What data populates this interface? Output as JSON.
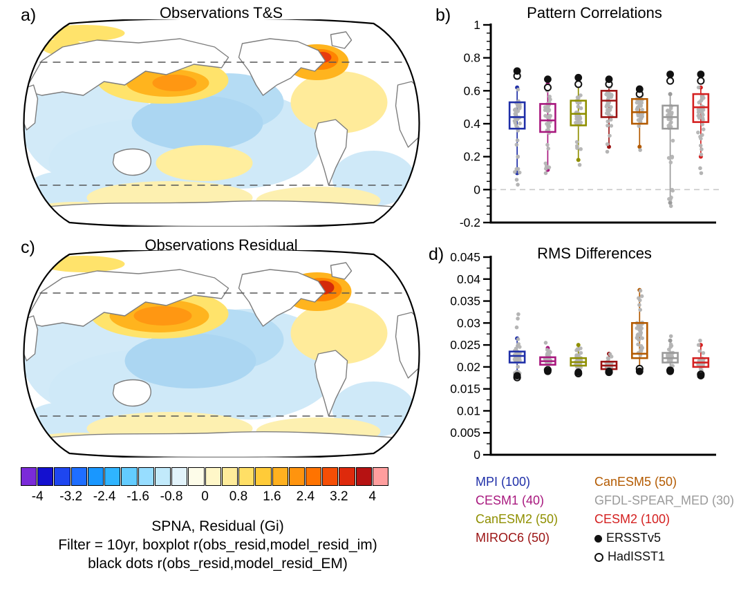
{
  "panel_a": {
    "label": "a)",
    "title": "Observations T&S"
  },
  "panel_b": {
    "label": "b)",
    "title": "Pattern Correlations"
  },
  "panel_c": {
    "label": "c)",
    "title": "Observations Residual"
  },
  "panel_d": {
    "label": "d)",
    "title": "RMS Differences"
  },
  "caption": {
    "line1": "SPNA, Residual (Gi)",
    "line2": "Filter = 10yr, boxplot r(obs_resid,model_resid_im)",
    "line3": "black dots r(obs_resid,model_resid_EM)"
  },
  "colorbar": {
    "tick_labels": [
      "-4",
      "-3.2",
      "-2.4",
      "-1.6",
      "-0.8",
      "0",
      "0.8",
      "1.6",
      "2.4",
      "3.2",
      "4"
    ],
    "colors": [
      "#7b2bd8",
      "#1410cf",
      "#1e46f0",
      "#1e6eff",
      "#1997ff",
      "#2fb4ff",
      "#63ccff",
      "#97ddff",
      "#c2eafb",
      "#e2f3fb",
      "#fdfce9",
      "#fff7c8",
      "#ffec9b",
      "#ffdf66",
      "#ffcb38",
      "#ffb120",
      "#ff940e",
      "#ff7300",
      "#f54e06",
      "#de2a0c",
      "#b61212",
      "#ff9e9e"
    ]
  },
  "legend": {
    "column1": [
      {
        "label": "MPI (100)",
        "color": "#1f2fa8"
      },
      {
        "label": "CESM1 (40)",
        "color": "#a8187e"
      },
      {
        "label": "CanESM2 (50)",
        "color": "#8f8f00"
      },
      {
        "label": "MIROC6 (50)",
        "color": "#9b1313"
      }
    ],
    "column2": [
      {
        "label": "CanESM5 (50)",
        "color": "#b35a00"
      },
      {
        "label": "GFDL-SPEAR_MED (30)",
        "color": "#9a9a9a"
      },
      {
        "label": "CESM2 (100)",
        "color": "#d42020"
      },
      {
        "label": "ERSSTv5",
        "color": "#111111",
        "marker": "filled-circle"
      },
      {
        "label": "HadISST1",
        "color": "#111111",
        "marker": "open-circle"
      }
    ]
  },
  "chart_data": [
    {
      "panel": "b",
      "type": "boxplot",
      "title": "Pattern Correlations",
      "ylim": [
        -0.2,
        1
      ],
      "yticks": [
        -0.2,
        0,
        0.2,
        0.4,
        0.6,
        0.8,
        1
      ],
      "ytick_labels": [
        "-0.2",
        "0",
        "0.2",
        "0.4",
        "0.6",
        "0.8",
        "1"
      ],
      "yminor": 0.05,
      "zero_line": true,
      "grid": false,
      "legend_position": "below-right",
      "series": [
        {
          "name": "MPI",
          "n": 100,
          "color": "#1f2fa8",
          "q1": 0.37,
          "median": 0.44,
          "q3": 0.53,
          "whisker_low": 0.1,
          "whisker_high": 0.62,
          "ersstv5": 0.72,
          "hadisst1": 0.69,
          "outlier_dots": [
            0.06,
            0.03
          ]
        },
        {
          "name": "CESM1",
          "n": 40,
          "color": "#a8187e",
          "q1": 0.35,
          "median": 0.42,
          "q3": 0.52,
          "whisker_low": 0.12,
          "whisker_high": 0.64,
          "ersstv5": 0.67,
          "hadisst1": 0.62,
          "outlier_dots": [
            0.1
          ]
        },
        {
          "name": "CanESM2",
          "n": 50,
          "color": "#8f8f00",
          "q1": 0.39,
          "median": 0.46,
          "q3": 0.54,
          "whisker_low": 0.18,
          "whisker_high": 0.63,
          "ersstv5": 0.68,
          "hadisst1": 0.64,
          "outlier_dots": [
            0.15
          ]
        },
        {
          "name": "MIROC6",
          "n": 50,
          "color": "#9b1313",
          "q1": 0.44,
          "median": 0.54,
          "q3": 0.6,
          "whisker_low": 0.26,
          "whisker_high": 0.63,
          "ersstv5": 0.67,
          "hadisst1": 0.64,
          "outlier_dots": [
            0.23
          ]
        },
        {
          "name": "CanESM5",
          "n": 50,
          "color": "#b35a00",
          "q1": 0.4,
          "median": 0.47,
          "q3": 0.55,
          "whisker_low": 0.26,
          "whisker_high": 0.6,
          "ersstv5": 0.61,
          "hadisst1": 0.58,
          "outlier_dots": [
            0.24
          ]
        },
        {
          "name": "GFDL-SPEAR_MED",
          "n": 30,
          "color": "#9a9a9a",
          "q1": 0.37,
          "median": 0.44,
          "q3": 0.51,
          "whisker_low": -0.08,
          "whisker_high": 0.58,
          "ersstv5": 0.7,
          "hadisst1": 0.66,
          "outlier_dots": [
            -0.1
          ]
        },
        {
          "name": "CESM2",
          "n": 100,
          "color": "#d42020",
          "q1": 0.41,
          "median": 0.5,
          "q3": 0.58,
          "whisker_low": 0.2,
          "whisker_high": 0.62,
          "ersstv5": 0.7,
          "hadisst1": 0.66,
          "outlier_dots": [
            0.13,
            0.1
          ]
        }
      ]
    },
    {
      "panel": "d",
      "type": "boxplot",
      "title": "RMS Differences",
      "ylim": [
        0,
        0.045
      ],
      "yticks": [
        0,
        0.005,
        0.01,
        0.015,
        0.02,
        0.025,
        0.03,
        0.035,
        0.04,
        0.045
      ],
      "ytick_labels": [
        "0",
        "0.005",
        "0.01",
        "0.015",
        "0.02",
        "0.025",
        "0.03",
        "0.035",
        "0.04",
        "0.045"
      ],
      "yminor": 0.0025,
      "zero_line": false,
      "grid": false,
      "legend_position": "below-right",
      "series": [
        {
          "name": "MPI",
          "n": 100,
          "color": "#1f2fa8",
          "q1": 0.021,
          "median": 0.0225,
          "q3": 0.0235,
          "whisker_low": 0.0185,
          "whisker_high": 0.0265,
          "ersstv5": 0.018,
          "hadisst1": 0.0176,
          "outlier_dots": [
            0.029,
            0.031,
            0.032
          ]
        },
        {
          "name": "CESM1",
          "n": 40,
          "color": "#a8187e",
          "q1": 0.0205,
          "median": 0.0213,
          "q3": 0.0222,
          "whisker_low": 0.019,
          "whisker_high": 0.0243,
          "ersstv5": 0.019,
          "hadisst1": 0.0193,
          "outlier_dots": [
            0.0255
          ]
        },
        {
          "name": "CanESM2",
          "n": 50,
          "color": "#8f8f00",
          "q1": 0.0203,
          "median": 0.0211,
          "q3": 0.022,
          "whisker_low": 0.019,
          "whisker_high": 0.025,
          "ersstv5": 0.0188,
          "hadisst1": 0.0185,
          "outlier_dots": []
        },
        {
          "name": "MIROC6",
          "n": 50,
          "color": "#9b1313",
          "q1": 0.0195,
          "median": 0.0203,
          "q3": 0.0212,
          "whisker_low": 0.0185,
          "whisker_high": 0.023,
          "ersstv5": 0.019,
          "hadisst1": 0.0188,
          "outlier_dots": []
        },
        {
          "name": "CanESM5",
          "n": 50,
          "color": "#b35a00",
          "q1": 0.022,
          "median": 0.023,
          "q3": 0.03,
          "whisker_low": 0.0195,
          "whisker_high": 0.0375,
          "ersstv5": 0.019,
          "hadisst1": 0.0196,
          "outlier_dots": [
            0.033
          ]
        },
        {
          "name": "GFDL-SPEAR_MED",
          "n": 30,
          "color": "#9a9a9a",
          "q1": 0.021,
          "median": 0.022,
          "q3": 0.0232,
          "whisker_low": 0.0195,
          "whisker_high": 0.026,
          "ersstv5": 0.019,
          "hadisst1": 0.0192,
          "outlier_dots": [
            0.027
          ]
        },
        {
          "name": "CESM2",
          "n": 100,
          "color": "#d42020",
          "q1": 0.02,
          "median": 0.021,
          "q3": 0.022,
          "whisker_low": 0.0185,
          "whisker_high": 0.025,
          "ersstv5": 0.018,
          "hadisst1": 0.0183,
          "outlier_dots": [
            0.026
          ]
        }
      ]
    }
  ]
}
